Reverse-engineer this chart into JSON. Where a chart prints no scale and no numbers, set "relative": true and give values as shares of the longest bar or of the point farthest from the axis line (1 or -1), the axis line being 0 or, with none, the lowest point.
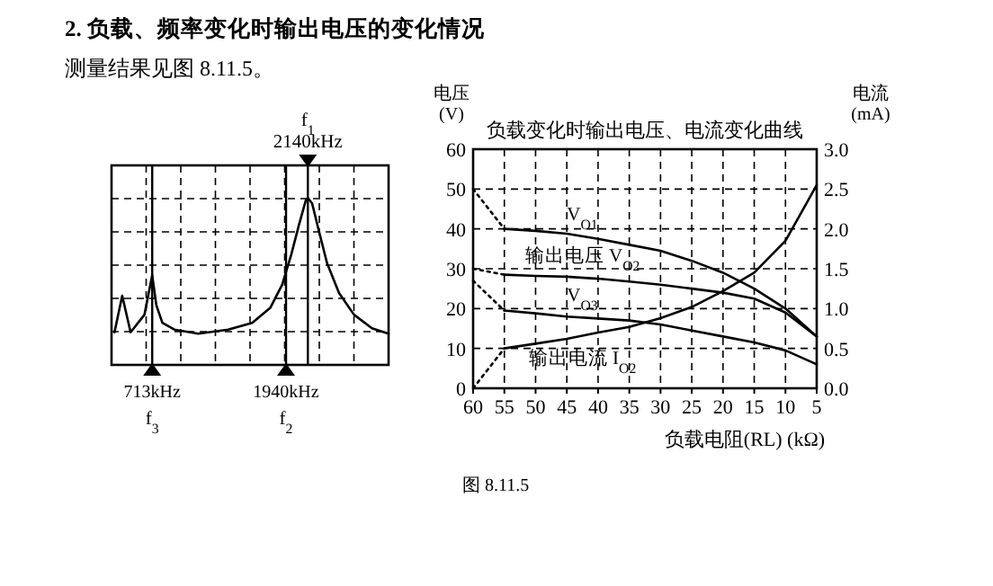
{
  "chart_data": [
    {
      "type": "line",
      "title": "2. 负载、频率变化时输出电压的变化情况",
      "subtitle": "测量结果见图 8.11.5。",
      "relative": true,
      "grid": true,
      "xlim": [
        340,
        2880
      ],
      "xticks": [
        {
          "value": 713,
          "label": "713kHz"
        },
        {
          "value": 1940,
          "label": "1940kHz"
        }
      ],
      "series": [
        {
          "color": "#000000",
          "x": [
            367,
            438,
            515,
            642,
            713,
            751,
            806,
            916,
            1136,
            1410,
            1630,
            1795,
            1904,
            1987,
            2058,
            2124,
            2140,
            2179,
            2234,
            2316,
            2426,
            2563,
            2728,
            2880
          ],
          "values": [
            0.01,
            0.28,
            0.01,
            0.14,
            0.43,
            0.21,
            0.08,
            0.03,
            0,
            0.03,
            0.08,
            0.19,
            0.36,
            0.58,
            0.8,
            0.99,
            1,
            0.96,
            0.78,
            0.52,
            0.3,
            0.14,
            0.04,
            0
          ]
        }
      ],
      "ref_lines": [
        {
          "axis": "x",
          "value": 2140,
          "label": "f$_{1}$\n2140kHz",
          "color": "#000000"
        },
        {
          "axis": "x",
          "value": 713,
          "label": "f$_{3}$",
          "color": "#000000"
        },
        {
          "axis": "x",
          "value": 1940,
          "label": "f$_{2}$",
          "color": "#000000"
        }
      ]
    },
    {
      "type": "line",
      "title": "负载变化时输出电压、电流变化曲线",
      "xlabel": "负载电阻(RL) (kΩ)",
      "ylabel": "电压\n(V)",
      "y2label": "电流\n(mA)",
      "grid": true,
      "x": [
        55,
        50,
        45,
        40,
        35,
        30,
        25,
        20,
        15,
        10,
        5
      ],
      "xlim": [
        60,
        5
      ],
      "xticks": [
        60,
        55,
        50,
        45,
        40,
        35,
        30,
        25,
        20,
        15,
        10,
        5
      ],
      "ylim": [
        0,
        60
      ],
      "yticks": [
        0,
        10,
        20,
        30,
        40,
        50,
        60
      ],
      "y2lim": [
        0,
        3
      ],
      "y2ticks": [
        {
          "value": 0,
          "label": "0.0"
        },
        {
          "value": 0.5,
          "label": "0.5"
        },
        {
          "value": 1,
          "label": "1.0"
        },
        {
          "value": 1.5,
          "label": "1.5"
        },
        {
          "value": 2,
          "label": "2.0"
        },
        {
          "value": 2.5,
          "label": "2.5"
        },
        {
          "value": 3,
          "label": "3.0"
        }
      ],
      "series": [
        {
          "name": "V$_{O1}$",
          "color": "#000000",
          "values": [
            40,
            39.5,
            38.8,
            37.5,
            36,
            34.5,
            32,
            29,
            25,
            20,
            13
          ]
        },
        {
          "name": "输出电压 V$_{O2}$",
          "color": "#000000",
          "values": [
            28.5,
            28.2,
            28,
            27.5,
            26.8,
            26,
            25,
            24,
            22.5,
            19,
            13
          ]
        },
        {
          "name": "V$_{O3}$",
          "color": "#000000",
          "values": [
            19.5,
            18.8,
            18,
            17.5,
            17,
            16,
            14.5,
            13,
            11.5,
            9.5,
            6
          ]
        },
        {
          "name": "输出电流 I$_{O2}$",
          "color": "#000000",
          "axis": "y2",
          "values": [
            0.5,
            0.56,
            0.62,
            0.7,
            0.77,
            0.88,
            1.02,
            1.22,
            1.45,
            1.85,
            2.55
          ]
        },
        {
          "color": "#000000",
          "line_style": "dotted",
          "x": [
            60,
            55
          ],
          "values": [
            50,
            40
          ]
        },
        {
          "color": "#000000",
          "line_style": "dotted",
          "x": [
            60,
            55
          ],
          "values": [
            30,
            28.5
          ]
        },
        {
          "color": "#000000",
          "line_style": "dotted",
          "x": [
            60,
            55
          ],
          "values": [
            27,
            19.5
          ]
        },
        {
          "color": "#000000",
          "line_style": "dotted",
          "axis": "y2",
          "x": [
            60,
            55
          ],
          "values": [
            0,
            0.5
          ]
        }
      ],
      "annotations": [
        "图 8.11.5"
      ]
    }
  ]
}
